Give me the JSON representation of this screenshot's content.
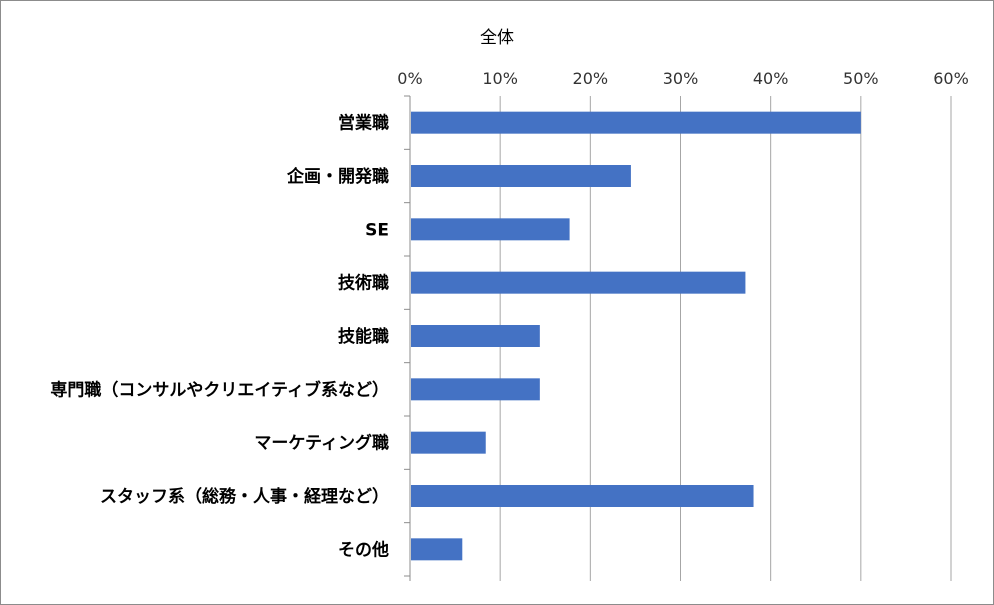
{
  "chart_data": {
    "type": "bar",
    "orientation": "horizontal",
    "title": "全体",
    "categories": [
      "営業職",
      "企画・開発職",
      "SE",
      "技術職",
      "技能職",
      "専門職（コンサルやクリエイティブ系など）",
      "マーケティング職",
      "スタッフ系（総務・人事・経理など）",
      "その他"
    ],
    "values": [
      50,
      24.5,
      17.7,
      37.2,
      14.4,
      14.4,
      8.4,
      38.1,
      5.8
    ],
    "xlim": [
      0,
      60
    ],
    "x_ticks": [
      "0%",
      "10%",
      "20%",
      "30%",
      "40%",
      "50%",
      "60%"
    ],
    "x_axis_position": "top",
    "grid": true,
    "legend": "none",
    "bar_color": "#4472c4",
    "grid_color": "#a6a6a6"
  }
}
